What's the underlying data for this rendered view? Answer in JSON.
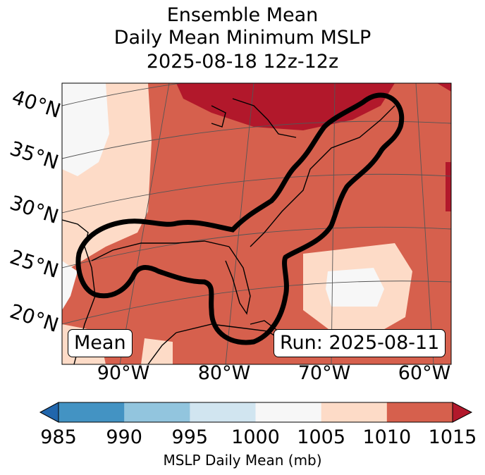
{
  "title": {
    "line1": "Ensemble Mean",
    "line2": "Daily Mean Minimum MSLP",
    "line3": "2025-08-18 12z-12z"
  },
  "map": {
    "lat_labels": [
      "40°N",
      "35°N",
      "30°N",
      "25°N",
      "20°N"
    ],
    "lon_labels": [
      "90°W",
      "80°W",
      "70°W",
      "60°W"
    ],
    "mean_box": "Mean",
    "run_box": "Run: 2025-08-11"
  },
  "colorbar": {
    "ticks": [
      "985",
      "990",
      "995",
      "1000",
      "1005",
      "1010",
      "1015"
    ],
    "label": "MSLP Daily Mean (mb)",
    "colors": [
      "#2166ac",
      "#4393c3",
      "#92c5de",
      "#d1e5f0",
      "#f7f7f7",
      "#fddbc7",
      "#d6604d",
      "#b2182b"
    ]
  }
}
